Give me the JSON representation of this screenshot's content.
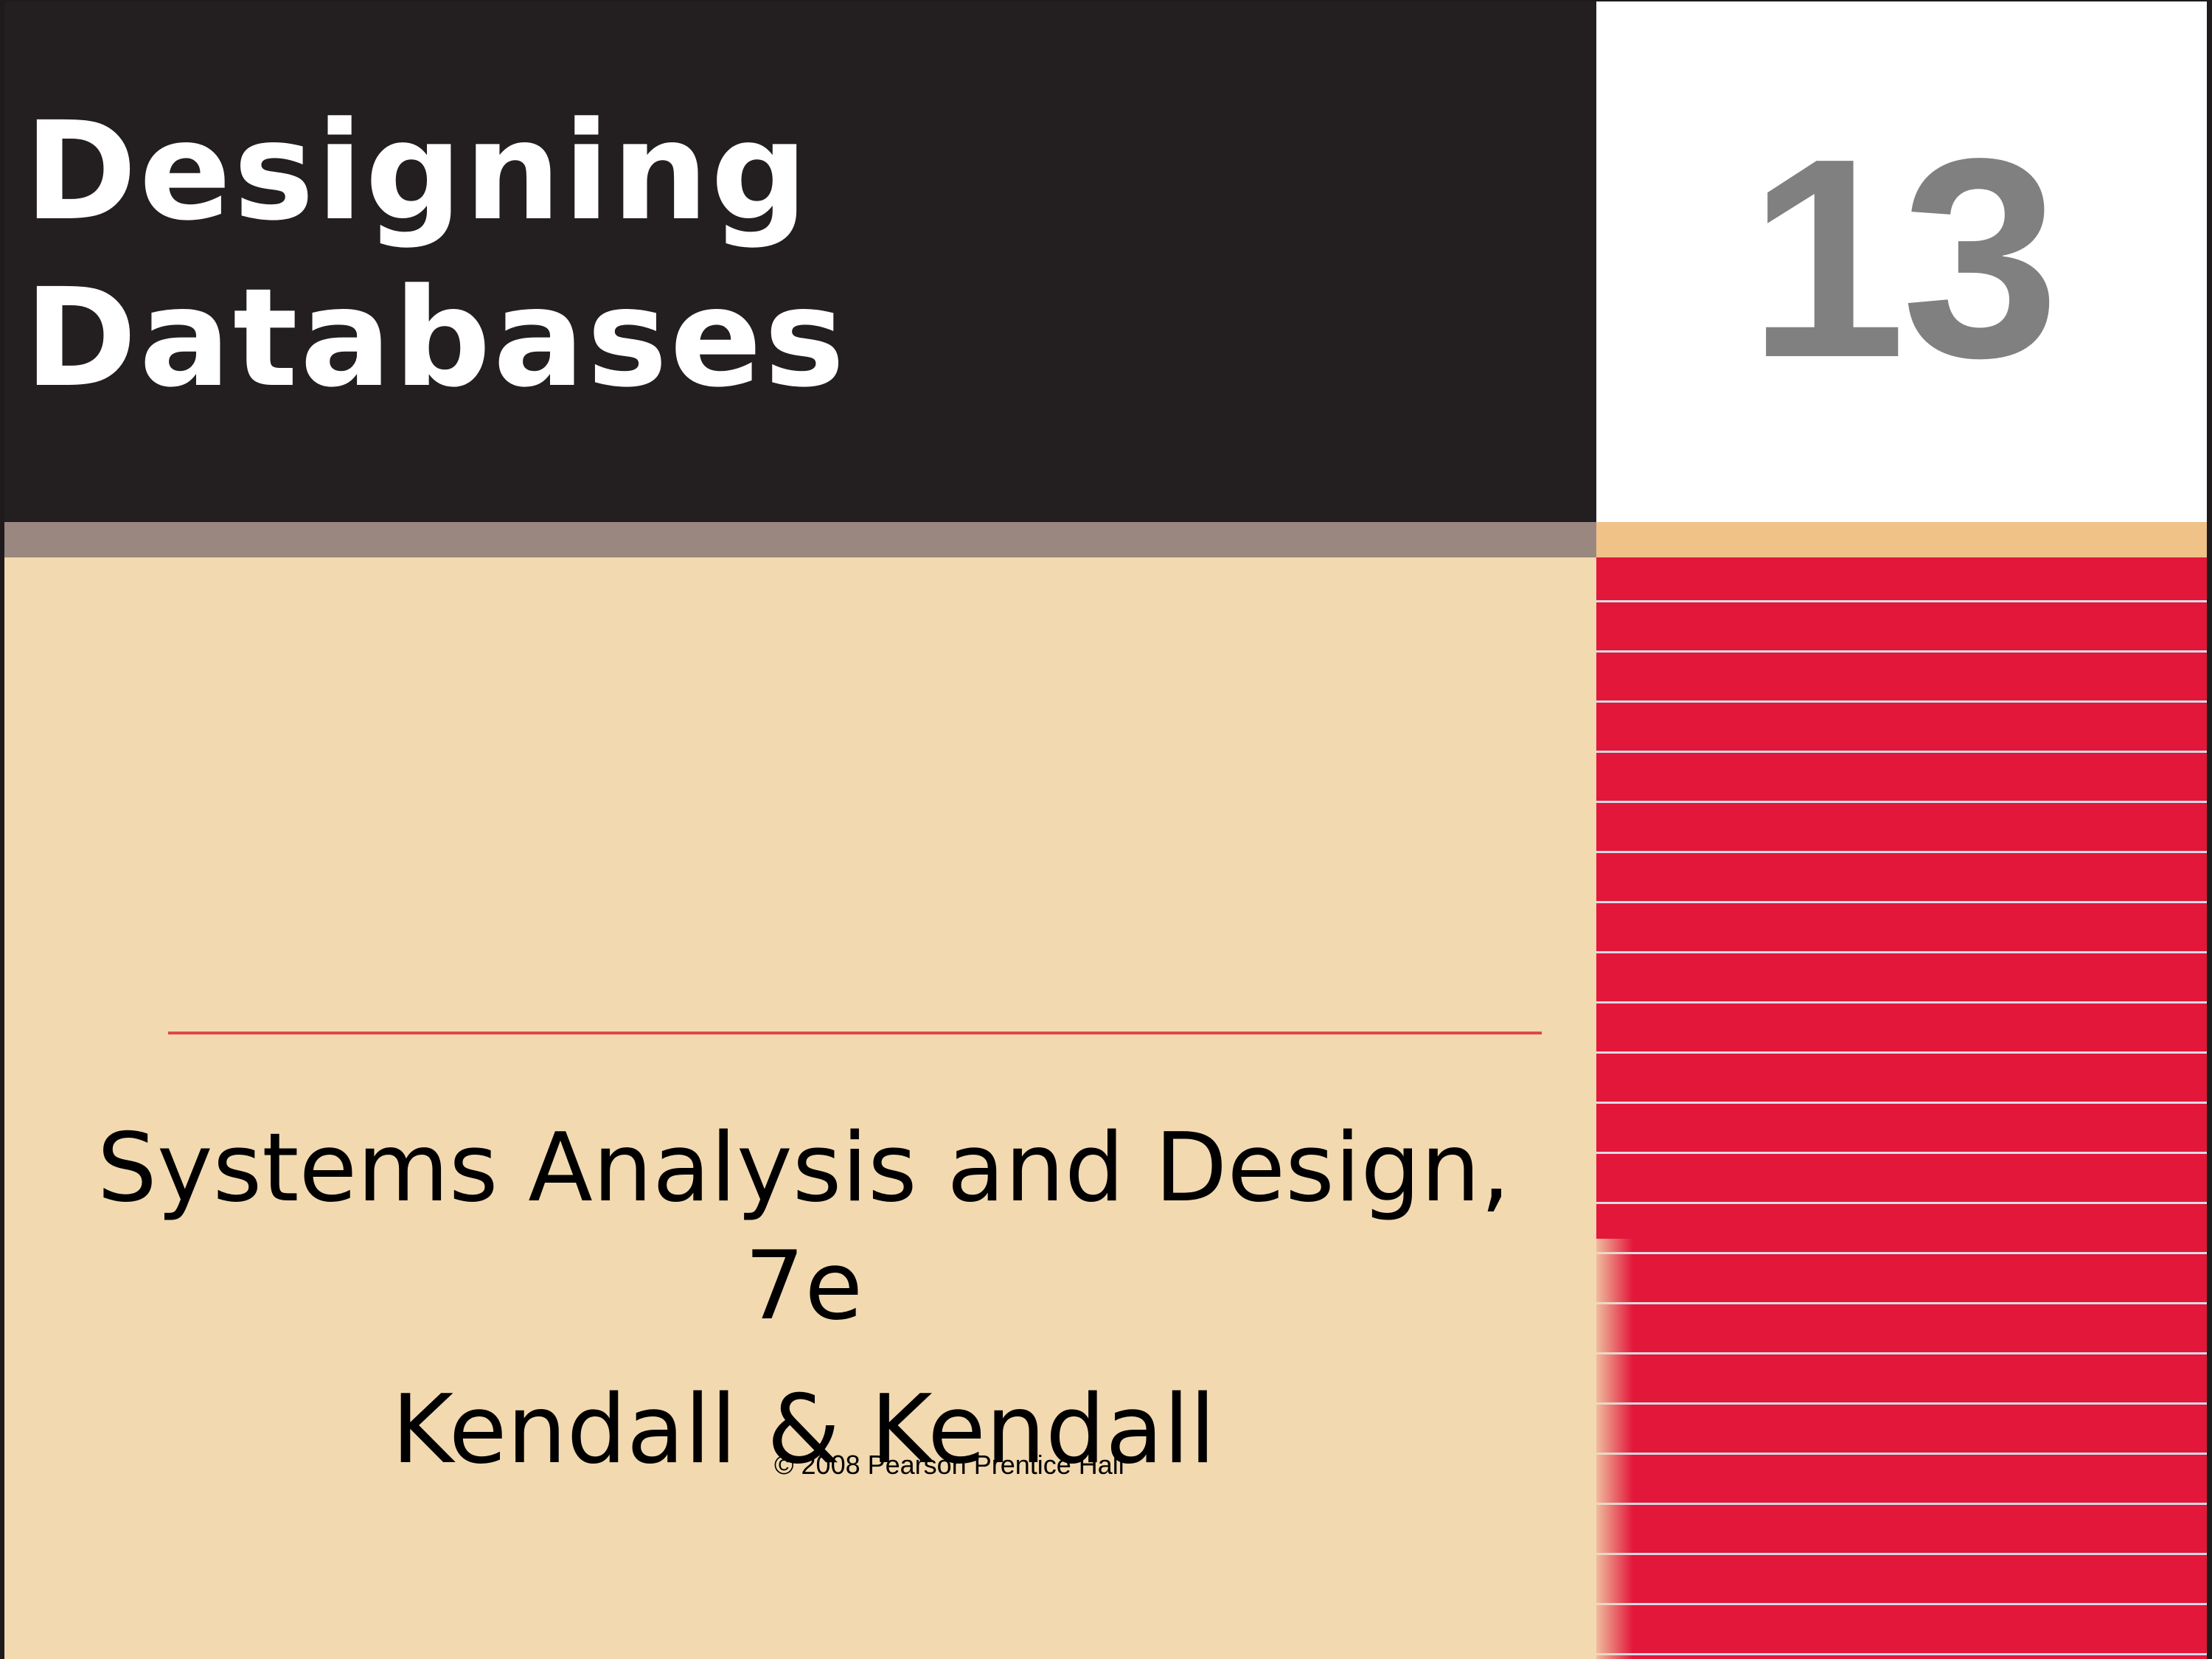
{
  "slide": {
    "title_lines": [
      "Designing",
      "Databases"
    ],
    "chapter_number": "13",
    "subtitle_lines": [
      "Systems Analysis and Design,",
      "7e"
    ],
    "authors": "Kendall & Kendall",
    "copyright": "© 2008 Pearson Prentice Hall"
  },
  "colors": {
    "title_band": "#231f20",
    "title_text": "#ffffff",
    "chapter_number": "#808080",
    "gray_strip": "#9a8880",
    "peach_strip": "#f0c288",
    "background": "#f2d9b0",
    "red_panel": "#e2173a",
    "stripe_lines": "#d8dbe4",
    "divider": "#e04848"
  }
}
